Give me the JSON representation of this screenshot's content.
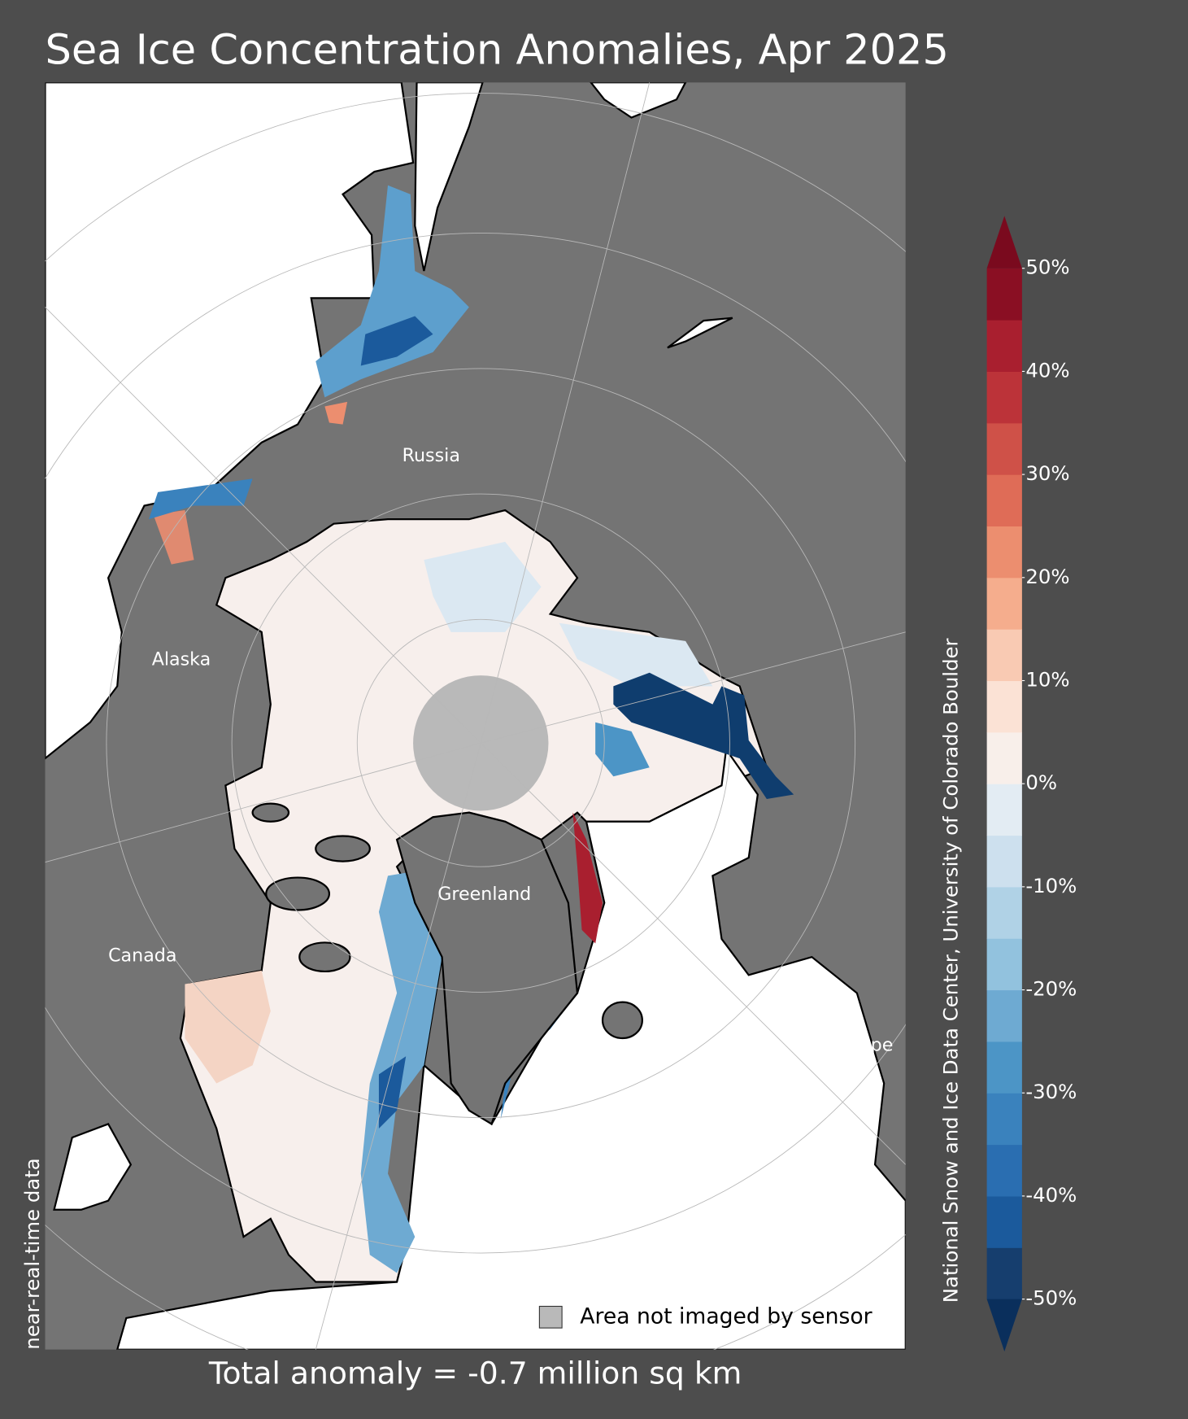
{
  "chart_data": {
    "type": "map",
    "title": "Sea Ice Concentration Anomalies, Apr 2025",
    "footer": "Total anomaly = -0.7 million sq km",
    "left_note": "near-real-time data",
    "credit": "National Snow and Ice Data Center, University of Colorado Boulder",
    "legend": {
      "label": "Area not imaged by sensor",
      "color": "#b9b9b9"
    },
    "regions": [
      "Russia",
      "Alaska",
      "Greenland",
      "Canada",
      "Europe"
    ],
    "colorbar": {
      "lim": [
        -50,
        50
      ],
      "ticks": [
        {
          "value": 50,
          "label": "50%"
        },
        {
          "value": 40,
          "label": "40%"
        },
        {
          "value": 30,
          "label": "30%"
        },
        {
          "value": 20,
          "label": "20%"
        },
        {
          "value": 10,
          "label": "10%"
        },
        {
          "value": 0,
          "label": "0%"
        },
        {
          "value": -10,
          "label": "-10%"
        },
        {
          "value": -20,
          "label": "-20%"
        },
        {
          "value": -30,
          "label": "-30%"
        },
        {
          "value": -40,
          "label": "-40%"
        },
        {
          "value": -50,
          "label": "-50%"
        }
      ],
      "colors": [
        "#163e6e",
        "#1b5a9c",
        "#2a6eb1",
        "#3a82bd",
        "#4c95c6",
        "#6eaad2",
        "#92c2de",
        "#b0d2e6",
        "#cde0ee",
        "#e3ecf3",
        "#f8efea",
        "#fbe2d5",
        "#f9cab3",
        "#f5ad8d",
        "#ec8e6f",
        "#df6c57",
        "#cf5148",
        "#bc3339",
        "#a91f2f",
        "#8a0f23"
      ],
      "extend_colors": [
        "#0a2f5c",
        "#7a0a1e"
      ]
    }
  }
}
